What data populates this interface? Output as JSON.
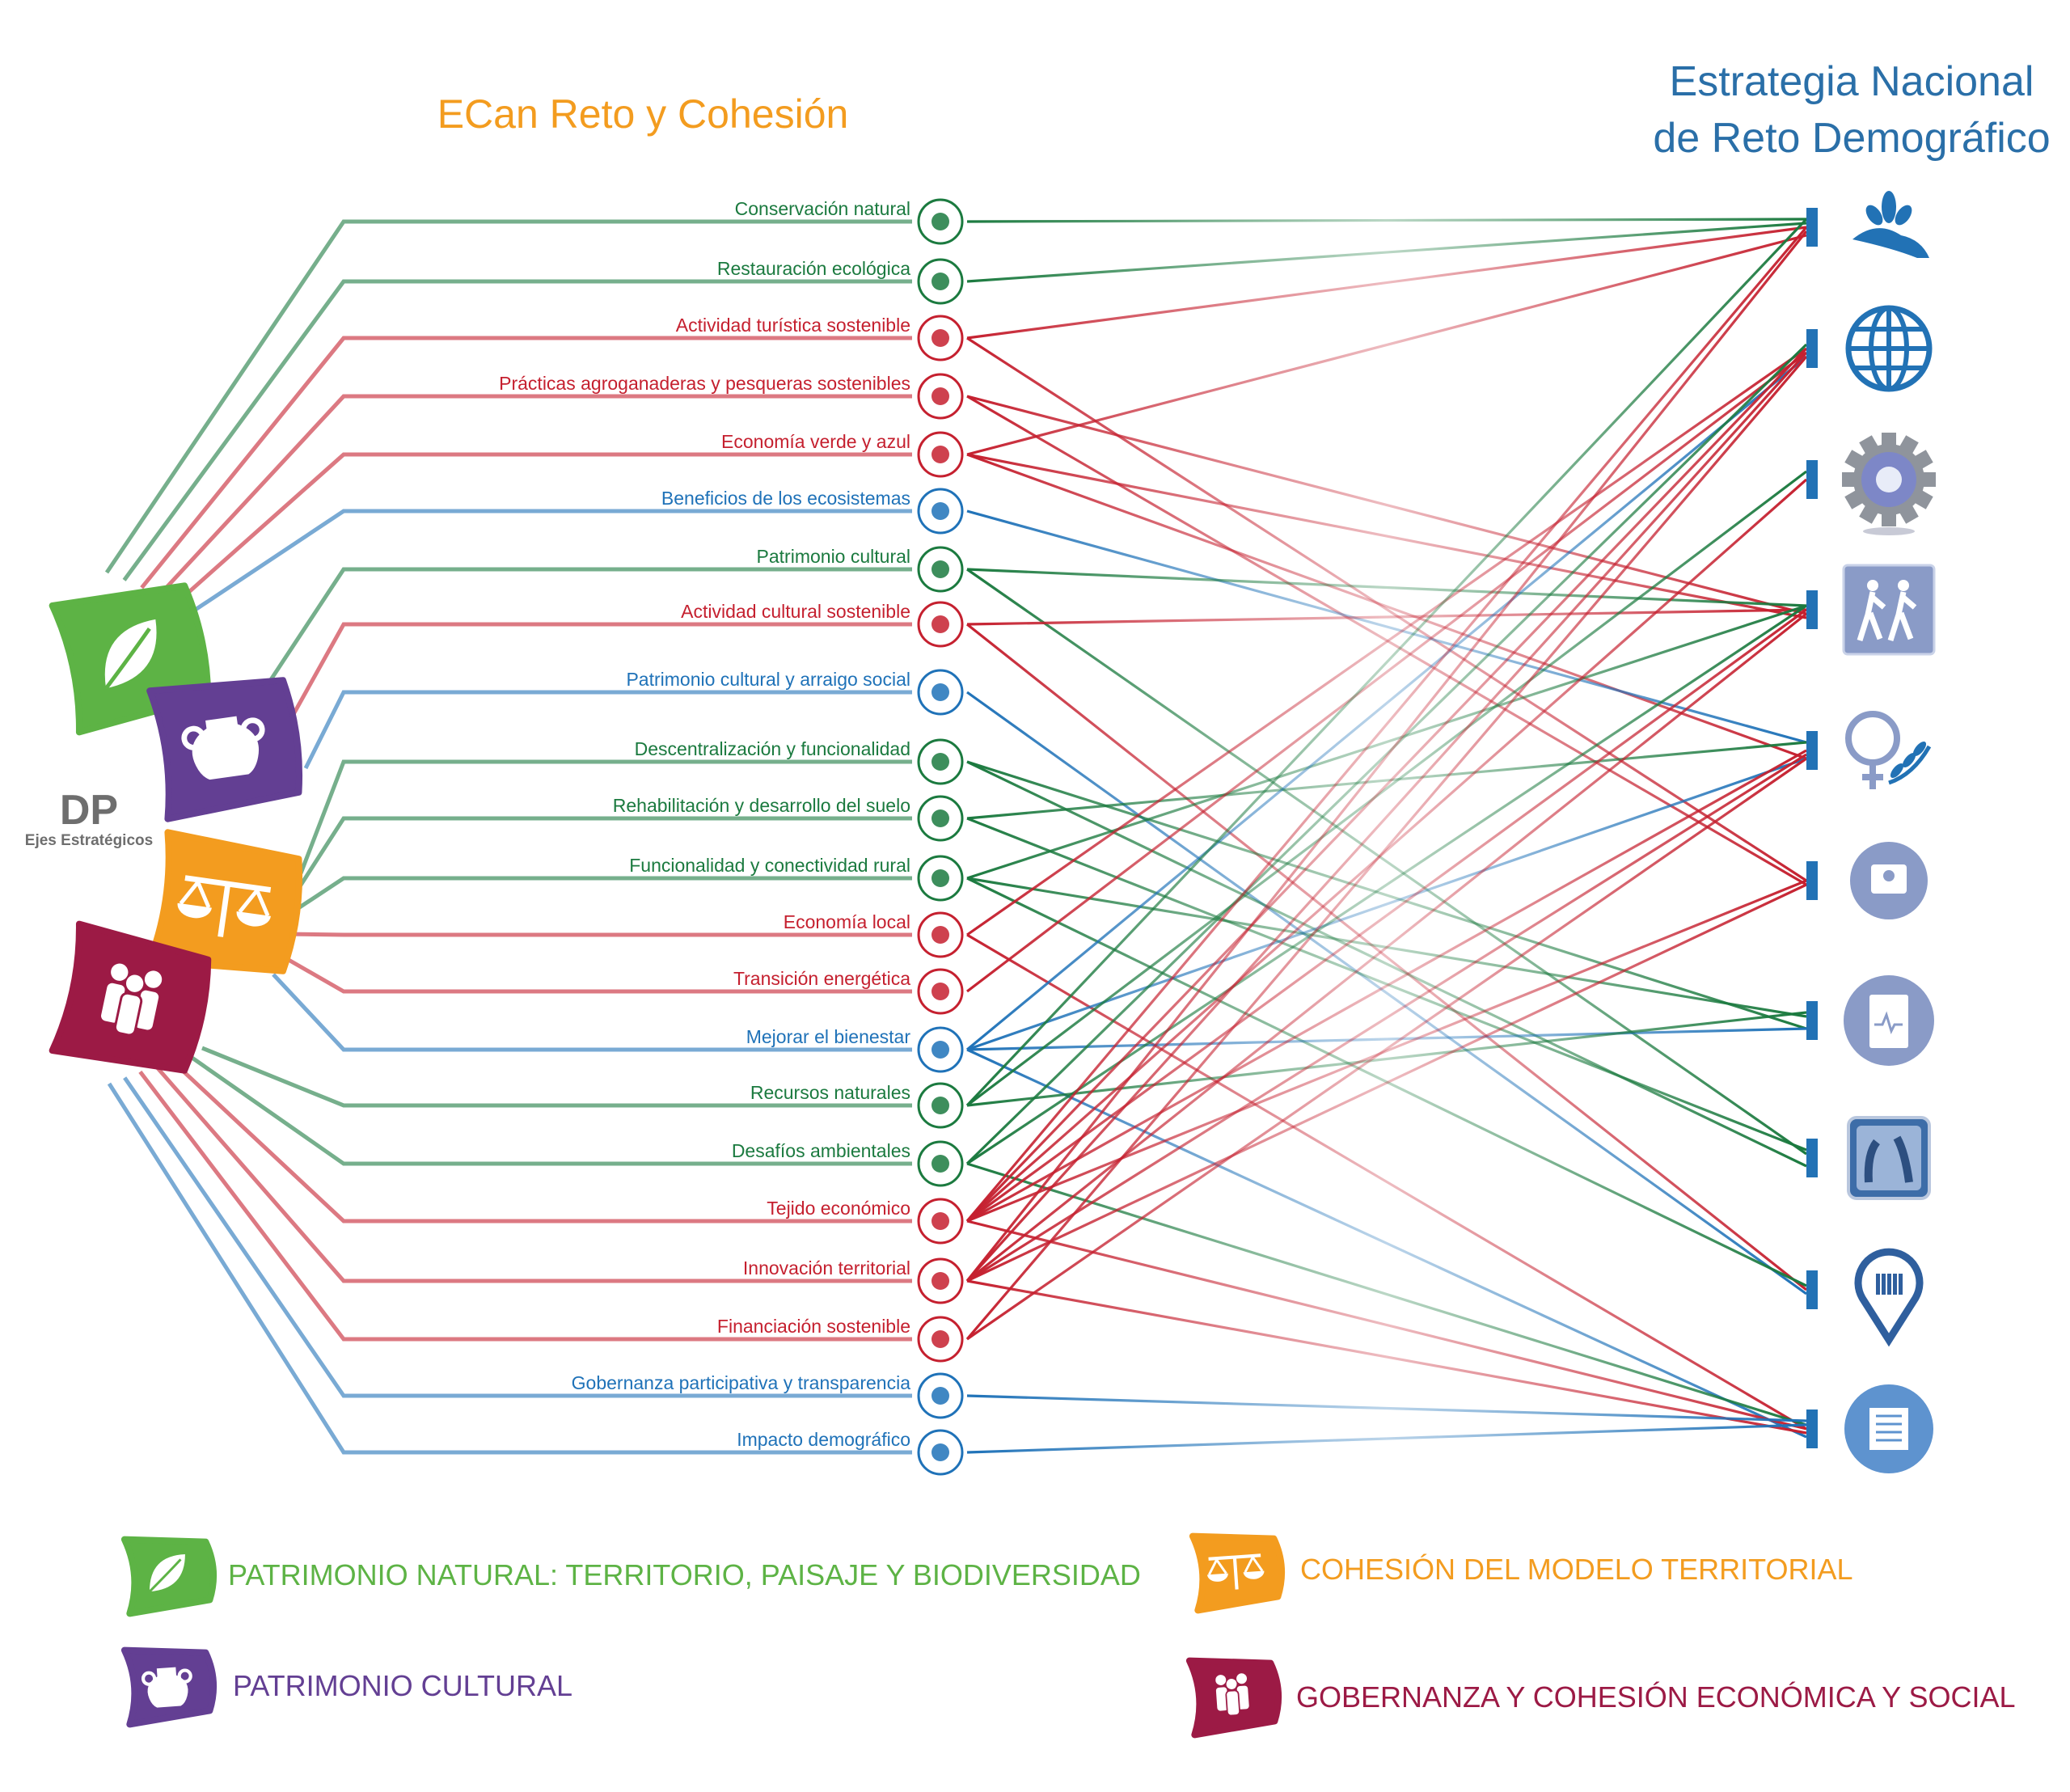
{
  "titles": {
    "left": "ECan Reto y Cohesión",
    "right_line1": "Estrategia Nacional",
    "right_line2": "de Reto Demográfico"
  },
  "center": {
    "abbr": "DP",
    "subtitle": "Ejes Estratégicos"
  },
  "colors": {
    "green": "#1b7a3f",
    "red": "#c5202f",
    "blue": "#1f72b8",
    "axis_natural": "#5db345",
    "axis_cultural": "#633f93",
    "axis_territorial": "#f39c1f",
    "axis_governance": "#9c1a45",
    "target_blue": "#2272b5"
  },
  "axes": [
    {
      "id": "natural",
      "icon": "leaf-icon",
      "legend": "PATRIMONIO NATURAL: TERRITORIO,  PAISAJE Y BIODIVERSIDAD"
    },
    {
      "id": "cultural",
      "icon": "vase-icon",
      "legend": "PATRIMONIO CULTURAL"
    },
    {
      "id": "territorial",
      "icon": "scales-icon",
      "legend": "COHESIÓN DEL MODELO TERRITORIAL"
    },
    {
      "id": "governance",
      "icon": "people-icon",
      "legend": "GOBERNANZA Y COHESIÓN ECONÓMICA Y SOCIAL"
    }
  ],
  "items": [
    {
      "label": "Conservación natural",
      "color": "green",
      "axis": 0,
      "icon": "leaf-cycle-icon",
      "links": [
        0
      ]
    },
    {
      "label": "Restauración ecológica",
      "color": "green",
      "axis": 0,
      "icon": "eco-restoration-icon",
      "links": [
        0
      ]
    },
    {
      "label": "Actividad turística sostenible",
      "color": "red",
      "axis": 0,
      "icon": "tourism-building-icon",
      "links": [
        0,
        5
      ]
    },
    {
      "label": "Prácticas agroganaderas y pesqueras sostenibles",
      "color": "red",
      "axis": 0,
      "icon": "farm-icon",
      "links": [
        3,
        5
      ]
    },
    {
      "label": "Economía verde y azul",
      "color": "red",
      "axis": 0,
      "icon": "plant-water-icon",
      "links": [
        0,
        3,
        4
      ]
    },
    {
      "label": "Beneficios de los ecosistemas",
      "color": "blue",
      "axis": 0,
      "icon": "ecosystem-icon",
      "links": [
        4
      ]
    },
    {
      "label": "Patrimonio cultural",
      "color": "green",
      "axis": 1,
      "icon": "heritage-hands-icon",
      "links": [
        3,
        7
      ]
    },
    {
      "label": "Actividad cultural sostenible",
      "color": "red",
      "axis": 1,
      "icon": "culture-tree-icon",
      "links": [
        3,
        8
      ]
    },
    {
      "label": "Patrimonio cultural y arraigo social",
      "color": "blue",
      "axis": 1,
      "icon": "head-heritage-icon",
      "links": [
        8
      ]
    },
    {
      "label": "Descentralización y funcionalidad",
      "color": "green",
      "axis": 2,
      "icon": "network-icon",
      "links": [
        6,
        7
      ]
    },
    {
      "label": "Rehabilitación y desarrollo del suelo",
      "color": "green",
      "axis": 2,
      "icon": "soil-check-icon",
      "links": [
        4,
        7
      ]
    },
    {
      "label": "Funcionalidad y conectividad rural",
      "color": "green",
      "axis": 2,
      "icon": "rural-road-icon",
      "links": [
        3,
        6,
        8
      ]
    },
    {
      "label": "Economía local",
      "color": "red",
      "axis": 2,
      "icon": "local-shop-icon",
      "links": [
        1,
        9
      ]
    },
    {
      "label": "Transición energética",
      "color": "red",
      "axis": 2,
      "icon": "energy-icon",
      "links": [
        1
      ]
    },
    {
      "label": "Mejorar el bienestar",
      "color": "blue",
      "axis": 2,
      "icon": "heart-wellbeing-icon",
      "links": [
        1,
        4,
        6,
        9
      ]
    },
    {
      "label": "Recursos naturales",
      "color": "green",
      "axis": 3,
      "icon": "natural-resources-icon",
      "links": [
        0,
        2,
        6
      ]
    },
    {
      "label": "Desafíos ambientales",
      "color": "green",
      "axis": 3,
      "icon": "environment-puzzle-icon",
      "links": [
        1,
        3,
        9
      ]
    },
    {
      "label": "Tejido económico",
      "color": "red",
      "axis": 3,
      "icon": "economy-chart-icon",
      "links": [
        0,
        1,
        2,
        3,
        4,
        5,
        9
      ]
    },
    {
      "label": "Innovación territorial",
      "color": "red",
      "axis": 3,
      "icon": "innovation-layers-icon",
      "links": [
        0,
        1,
        3,
        4,
        5,
        9
      ]
    },
    {
      "label": "Financiación sostenible",
      "color": "red",
      "axis": 3,
      "icon": "euro-icon",
      "links": [
        1,
        4
      ]
    },
    {
      "label": "Gobernanza participativa y transparencia",
      "color": "blue",
      "axis": 3,
      "icon": "governance-icon",
      "links": [
        9
      ]
    },
    {
      "label": "Impacto demográfico",
      "color": "blue",
      "axis": 3,
      "icon": "demography-icon",
      "links": [
        9
      ]
    }
  ],
  "targets": [
    {
      "icon": "hand-plant-icon"
    },
    {
      "icon": "globe-icon"
    },
    {
      "icon": "gear-icon"
    },
    {
      "icon": "hikers-icon"
    },
    {
      "icon": "female-leaf-icon"
    },
    {
      "icon": "contact-badge-icon"
    },
    {
      "icon": "clipboard-health-icon"
    },
    {
      "icon": "elderly-icon"
    },
    {
      "icon": "location-library-icon"
    },
    {
      "icon": "document-icon"
    }
  ]
}
